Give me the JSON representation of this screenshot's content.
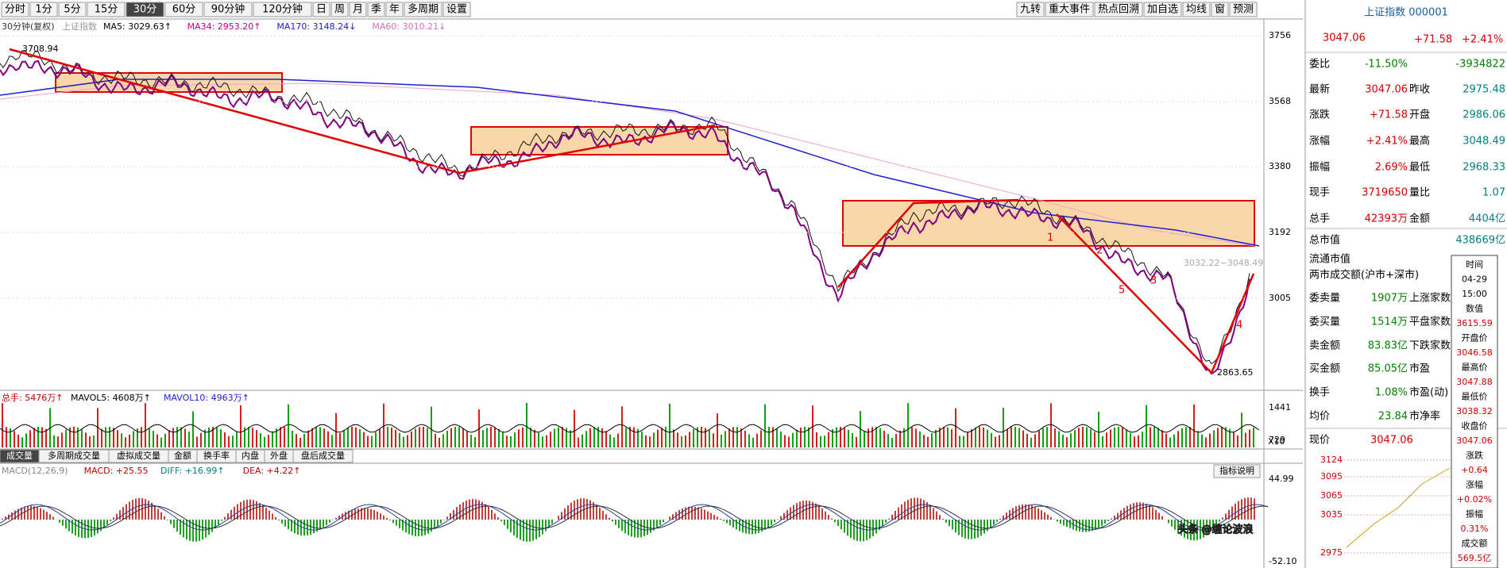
{
  "toolbar": {
    "periods": [
      "分时",
      "1分",
      "5分",
      "15分",
      "30分",
      "60分",
      "90分钟",
      "120分钟",
      "日",
      "周",
      "月",
      "季",
      "年",
      "多周期",
      "设置"
    ],
    "tools": [
      "九转",
      "重大事件",
      "热点回溯",
      "加自选",
      "均线",
      "窗",
      "预测"
    ]
  },
  "main_chart": {
    "period_label": "30分钟(复权)",
    "symbol": "上证指数",
    "ma": [
      {
        "text": "MA5: 3029.63↑",
        "color": "#000000"
      },
      {
        "text": "MA34: 2953.20↑",
        "color": "#c0008a"
      },
      {
        "text": "MA170: 3148.24↓",
        "color": "#2020d0"
      },
      {
        "text": "MA60: 3010.21↓",
        "color": "#d070c0"
      }
    ],
    "price_axis": [
      "3756",
      "3568",
      "3380",
      "3192",
      "3005"
    ],
    "high_label": "3708.94",
    "low_label": "2863.65",
    "range_label": "3032.22~3048.49",
    "wave_labels": [
      "1",
      "2",
      "3",
      "4",
      "5"
    ]
  },
  "volume": {
    "legend": [
      {
        "text": "总手: 5476万↑",
        "color": "#c00000"
      },
      {
        "text": "MAVOL5: 4608万↑",
        "color": "#000000"
      },
      {
        "text": "MAVOL10: 4963万↑",
        "color": "#2020d0"
      }
    ],
    "axis": [
      "1441",
      "729"
    ],
    "unit": "X10"
  },
  "tabs": [
    "成交量",
    "多周期成交量",
    "虚拟成交量",
    "金额",
    "换手率",
    "内盘",
    "外盘",
    "盘后成交量"
  ],
  "macd": {
    "legend": [
      {
        "text": "MACD(12,26,9)",
        "color": "#888888"
      },
      {
        "text": "MACD: +25.55",
        "color": "#c00000"
      },
      {
        "text": "DIFF: +16.99↑",
        "color": "#008080"
      },
      {
        "text": "DEA: +4.22↑",
        "color": "#c00000"
      }
    ],
    "button": "指标说明",
    "axis": [
      "44.99",
      "-52.10"
    ]
  },
  "quote": {
    "title": "上证指数 000001",
    "price": "3047.06",
    "change": "+71.58",
    "pct": "+2.41%",
    "rows": [
      [
        "委比",
        "-11.50%",
        "",
        "-3934822"
      ],
      [
        "最新",
        "3047.06",
        "昨收",
        "2975.48"
      ],
      [
        "涨跌",
        "+71.58",
        "开盘",
        "2986.06"
      ],
      [
        "涨幅",
        "+2.41%",
        "最高",
        "3048.49"
      ],
      [
        "振幅",
        "2.69%",
        "最低",
        "2968.33"
      ],
      [
        "现手",
        "3719650",
        "量比",
        "1.07"
      ],
      [
        "总手",
        "42393万",
        "金额",
        "4404亿"
      ],
      [
        "总市值",
        "",
        "",
        "438669亿"
      ],
      [
        "流通市值",
        "",
        "",
        ""
      ],
      [
        "两市成交额(沪市+深市)",
        "",
        "",
        ""
      ],
      [
        "委卖量",
        "1907万",
        "上涨家数",
        ""
      ],
      [
        "委买量",
        "1514万",
        "平盘家数",
        ""
      ],
      [
        "卖金额",
        "83.83亿",
        "下跌家数",
        ""
      ],
      [
        "买金额",
        "85.05亿",
        "市盈",
        ""
      ],
      [
        "换手",
        "1.08%",
        "市盈(动)",
        ""
      ],
      [
        "均价",
        "23.84",
        "市净率",
        ""
      ]
    ],
    "now_label": "现价",
    "now_value": "3047.06",
    "mini_axis": [
      "3124",
      "3095",
      "3065",
      "3035",
      "2975"
    ]
  },
  "popup": [
    "时间",
    "04-29",
    "15:00",
    "数值",
    "3615.59",
    "开盘价",
    "3046.58",
    "最高价",
    "3047.88",
    "最低价",
    "3038.32",
    "收盘价",
    "3047.06",
    "涨跌",
    "+0.64",
    "涨幅",
    "+0.02%",
    "振幅",
    "0.31%",
    "成交额",
    "569.5亿"
  ],
  "watermark": "头条 @缠论波浪"
}
